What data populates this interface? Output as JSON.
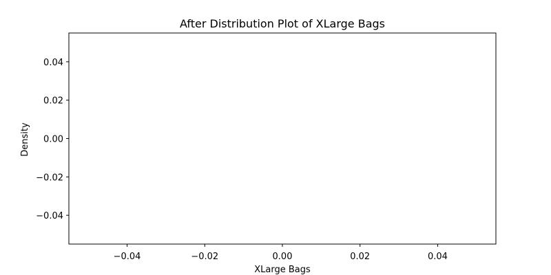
{
  "chart_data": {
    "type": "line",
    "title": "After Distribution Plot of XLarge Bags",
    "xlabel": "XLarge Bags",
    "ylabel": "Density",
    "xlim": [
      -0.055,
      0.055
    ],
    "ylim": [
      -0.055,
      0.055
    ],
    "xticks": [
      -0.04,
      -0.02,
      0.0,
      0.02,
      0.04
    ],
    "yticks": [
      -0.04,
      -0.02,
      0.0,
      0.02,
      0.04
    ],
    "xtick_labels": [
      "−0.04",
      "−0.02",
      "0.00",
      "0.02",
      "0.04"
    ],
    "ytick_labels": [
      "−0.04",
      "−0.02",
      "0.00",
      "0.02",
      "0.04"
    ],
    "series": [],
    "grid": false
  }
}
